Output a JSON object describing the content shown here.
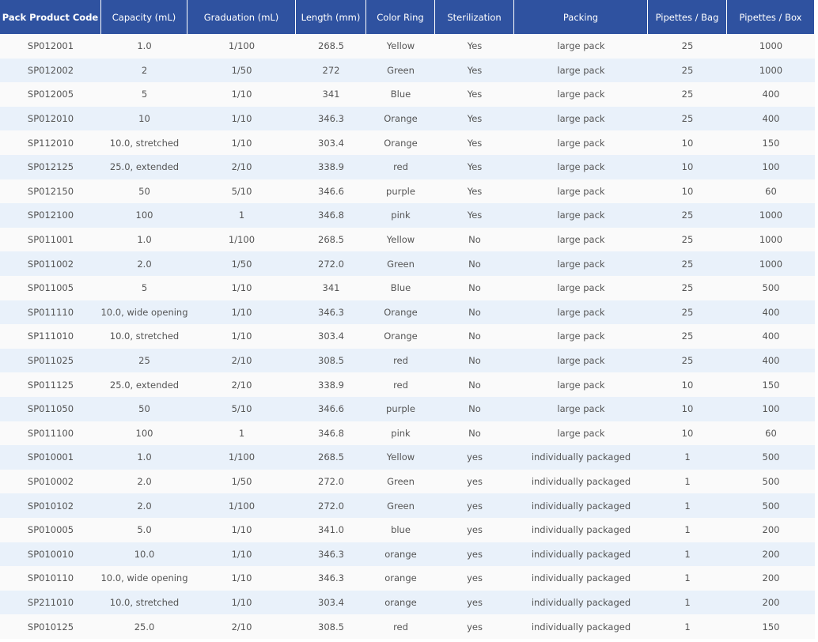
{
  "table": {
    "headers": [
      "Pack Product Code",
      "Capacity (mL)",
      "Graduation (mL)",
      "Length (mm)",
      "Color Ring",
      "Sterilization",
      "Packing",
      "Pipettes / Bag",
      "Pipettes / Box"
    ],
    "rows": [
      [
        "SP012001",
        "1.0",
        "1/100",
        "268.5",
        "Yellow",
        "Yes",
        "large pack",
        "25",
        "1000"
      ],
      [
        "SP012002",
        "2",
        "1/50",
        "272",
        "Green",
        "Yes",
        "large pack",
        "25",
        "1000"
      ],
      [
        "SP012005",
        "5",
        "1/10",
        "341",
        "Blue",
        "Yes",
        "large pack",
        "25",
        "400"
      ],
      [
        "SP012010",
        "10",
        "1/10",
        "346.3",
        "Orange",
        "Yes",
        "large pack",
        "25",
        "400"
      ],
      [
        "SP112010",
        "10.0, stretched",
        "1/10",
        "303.4",
        "Orange",
        "Yes",
        "large pack",
        "10",
        "150"
      ],
      [
        "SP012125",
        "25.0, extended",
        "2/10",
        "338.9",
        "red",
        "Yes",
        "large pack",
        "10",
        "100"
      ],
      [
        "SP012150",
        "50",
        "5/10",
        "346.6",
        "purple",
        "Yes",
        "large pack",
        "10",
        "60"
      ],
      [
        "SP012100",
        "100",
        "1",
        "346.8",
        "pink",
        "Yes",
        "large pack",
        "25",
        "1000"
      ],
      [
        "SP011001",
        "1.0",
        "1/100",
        "268.5",
        "Yellow",
        "No",
        "large pack",
        "25",
        "1000"
      ],
      [
        "SP011002",
        "2.0",
        "1/50",
        "272.0",
        "Green",
        "No",
        "large pack",
        "25",
        "1000"
      ],
      [
        "SP011005",
        "5",
        "1/10",
        "341",
        "Blue",
        "No",
        "large pack",
        "25",
        "500"
      ],
      [
        "SP011110",
        "10.0, wide opening",
        "1/10",
        "346.3",
        "Orange",
        "No",
        "large pack",
        "25",
        "400"
      ],
      [
        "SP111010",
        "10.0, stretched",
        "1/10",
        "303.4",
        "Orange",
        "No",
        "large pack",
        "25",
        "400"
      ],
      [
        "SP011025",
        "25",
        "2/10",
        "308.5",
        "red",
        "No",
        "large pack",
        "25",
        "400"
      ],
      [
        "SP011125",
        "25.0, extended",
        "2/10",
        "338.9",
        "red",
        "No",
        "large pack",
        "10",
        "150"
      ],
      [
        "SP011050",
        "50",
        "5/10",
        "346.6",
        "purple",
        "No",
        "large pack",
        "10",
        "100"
      ],
      [
        "SP011100",
        "100",
        "1",
        "346.8",
        "pink",
        "No",
        "large pack",
        "10",
        "60"
      ],
      [
        "SP010001",
        "1.0",
        "1/100",
        "268.5",
        "Yellow",
        "yes",
        "individually packaged",
        "1",
        "500"
      ],
      [
        "SP010002",
        "2.0",
        "1/50",
        "272.0",
        "Green",
        "yes",
        "individually packaged",
        "1",
        "500"
      ],
      [
        "SP010102",
        "2.0",
        "1/100",
        "272.0",
        "Green",
        "yes",
        "individually packaged",
        "1",
        "500"
      ],
      [
        "SP010005",
        "5.0",
        "1/10",
        "341.0",
        "blue",
        "yes",
        "individually packaged",
        "1",
        "200"
      ],
      [
        "SP010010",
        "10.0",
        "1/10",
        "346.3",
        "orange",
        "yes",
        "individually packaged",
        "1",
        "200"
      ],
      [
        "SP010110",
        "10.0, wide opening",
        "1/10",
        "346.3",
        "orange",
        "yes",
        "individually packaged",
        "1",
        "200"
      ],
      [
        "SP211010",
        "10.0, stretched",
        "1/10",
        "303.4",
        "orange",
        "yes",
        "individually packaged",
        "1",
        "200"
      ],
      [
        "SP010125",
        "25.0",
        "2/10",
        "308.5",
        "red",
        "yes",
        "individually packaged",
        "1",
        "150"
      ]
    ]
  }
}
